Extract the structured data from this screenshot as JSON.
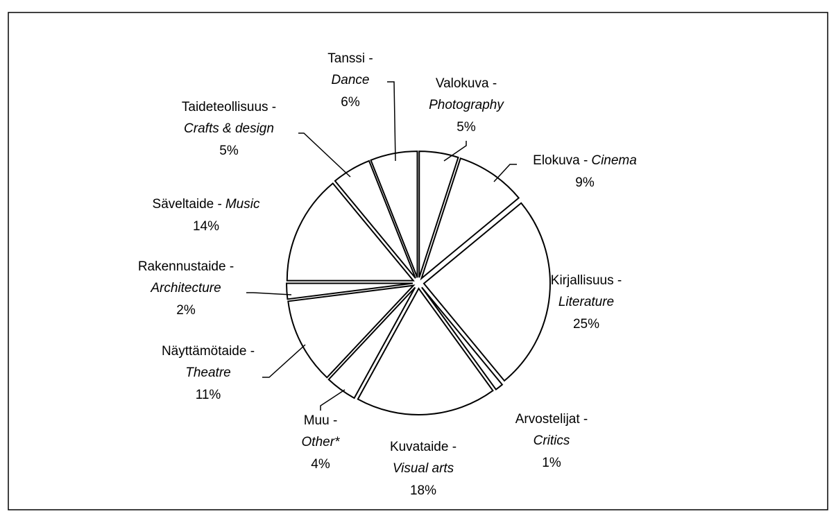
{
  "chart_data": {
    "type": "pie",
    "categories": [
      "Valokuva -",
      "Elokuva -",
      "Kirjallisuus -",
      "Arvostelijat -",
      "Kuvataide -",
      "Muu -",
      "Näyttämötaide -",
      "Rakennustaide -",
      "Säveltaide -",
      "Taideteollisuus -",
      "Tanssi -"
    ],
    "categories_en": [
      "Photography",
      "Cinema",
      "Literature",
      "Critics",
      "Visual arts",
      "Other*",
      "Theatre",
      "Architecture",
      "Music",
      "Crafts & design",
      "Dance"
    ],
    "values": [
      5,
      9,
      25,
      1,
      18,
      4,
      11,
      2,
      14,
      5,
      6
    ],
    "value_labels": [
      "5%",
      "9%",
      "25%",
      "1%",
      "18%",
      "4%",
      "11%",
      "2%",
      "14%",
      "5%",
      "6%"
    ],
    "color": "#ffffff"
  }
}
